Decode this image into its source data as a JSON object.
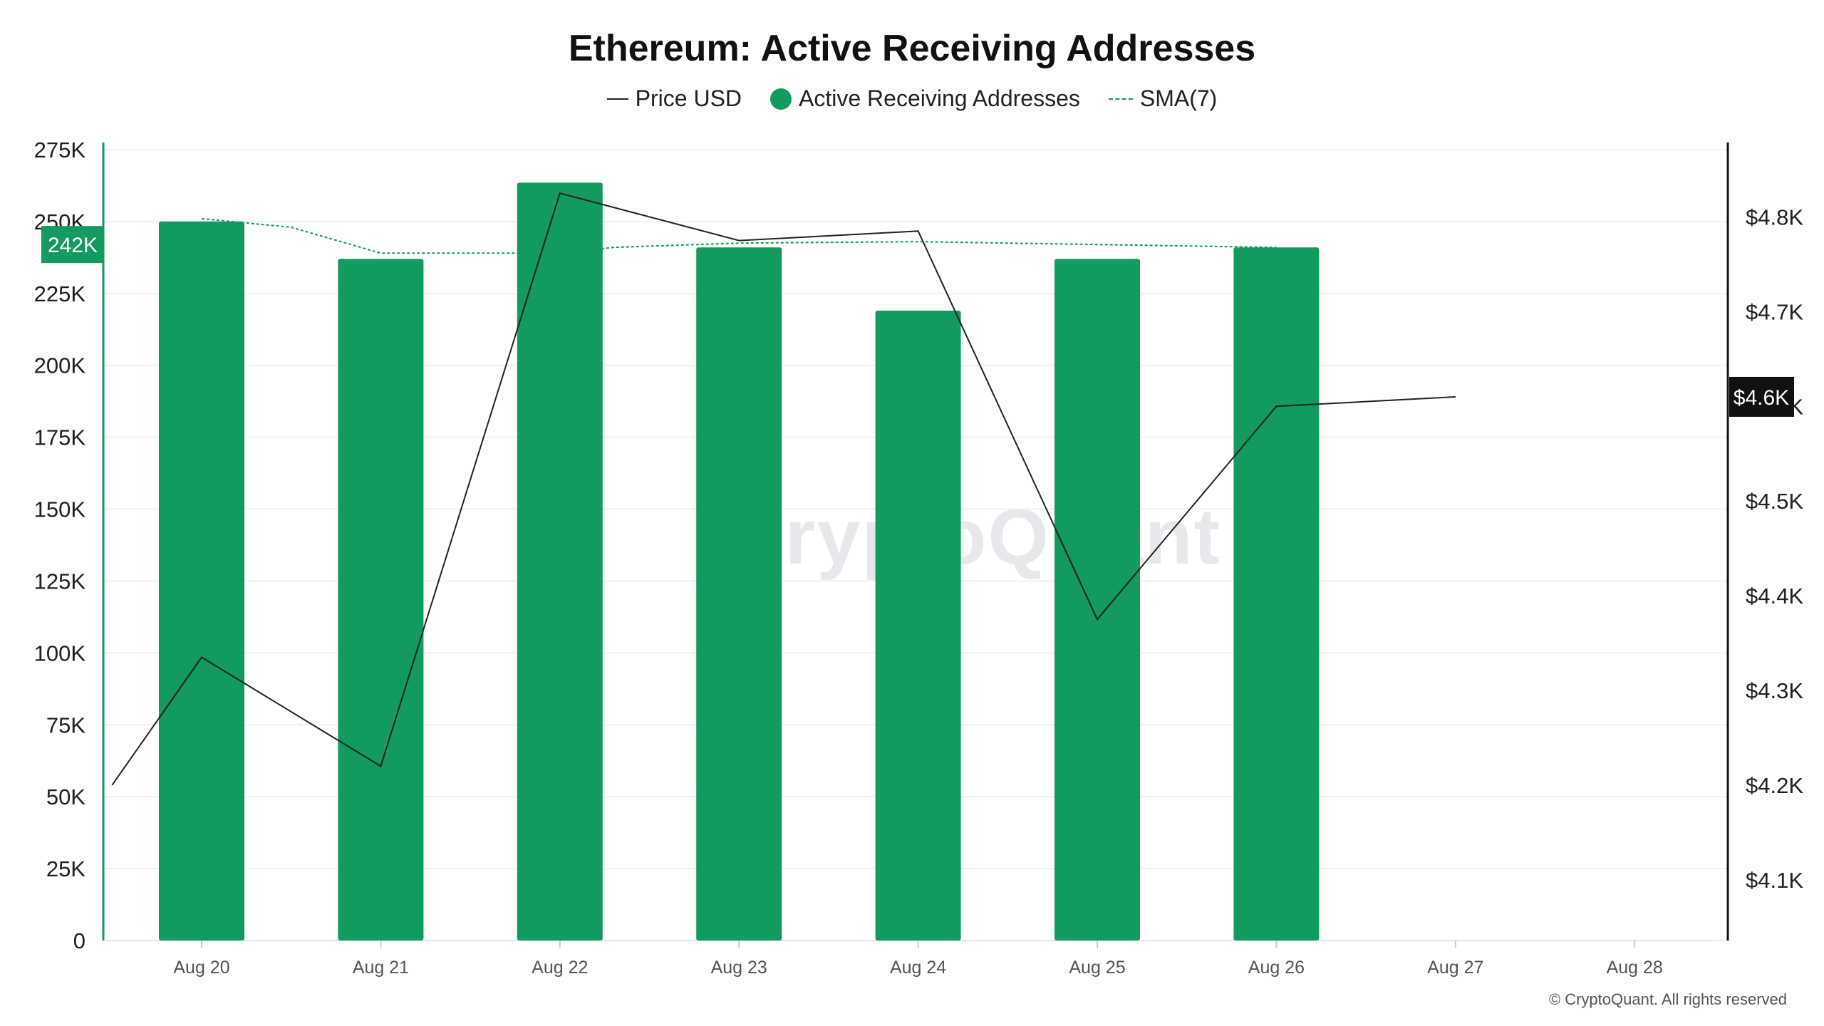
{
  "chart_data": {
    "type": "bar",
    "title": "Ethereum: Active Receiving Addresses",
    "categories": [
      "Aug 20",
      "Aug 21",
      "Aug 22",
      "Aug 23",
      "Aug 24",
      "Aug 25",
      "Aug 26",
      "Aug 27",
      "Aug 28"
    ],
    "legend": [
      "Price USD",
      "Active Receiving Addresses",
      "SMA(7)"
    ],
    "legend_position": "top-center",
    "series": [
      {
        "name": "Active Receiving Addresses",
        "type": "bar",
        "axis": "left",
        "color": "#139a5f",
        "values": [
          250000,
          237000,
          263500,
          241000,
          219000,
          237000,
          241000,
          null,
          null
        ]
      },
      {
        "name": "SMA(7)",
        "type": "line",
        "style": "dashed",
        "axis": "left",
        "color": "#139a5f",
        "points": [
          [
            0,
            251000
          ],
          [
            0.5,
            248000
          ],
          [
            1,
            239000
          ],
          [
            2,
            239000
          ],
          [
            2.3,
            241000
          ],
          [
            3,
            242500
          ],
          [
            4,
            243000
          ],
          [
            5,
            242000
          ],
          [
            6,
            241000
          ]
        ]
      },
      {
        "name": "Price USD",
        "type": "line",
        "axis": "right",
        "color": "#222222",
        "points": [
          [
            -0.5,
            4200
          ],
          [
            0,
            4335
          ],
          [
            1,
            4220
          ],
          [
            2,
            4825
          ],
          [
            3,
            4775
          ],
          [
            4,
            4785
          ],
          [
            5,
            4375
          ],
          [
            6,
            4600
          ],
          [
            7,
            4610
          ]
        ]
      }
    ],
    "y_left": {
      "ylim": [
        0,
        275000
      ],
      "ticks": [
        0,
        25000,
        50000,
        75000,
        100000,
        125000,
        150000,
        175000,
        200000,
        225000,
        250000,
        275000
      ],
      "tick_labels": [
        "0",
        "25K",
        "50K",
        "75K",
        "100K",
        "125K",
        "150K",
        "175K",
        "200K",
        "225K",
        "250K",
        "275K"
      ],
      "current_badge": "242K",
      "current_value": 242000
    },
    "y_right": {
      "ylim": [
        4036,
        4871
      ],
      "ticks": [
        4100,
        4200,
        4300,
        4400,
        4500,
        4600,
        4700,
        4800
      ],
      "tick_labels": [
        "$4.1K",
        "$4.2K",
        "$4.3K",
        "$4.4K",
        "$4.5K",
        "$4.6K",
        "$4.7K",
        "$4.8K"
      ],
      "current_badge": "$4.6K",
      "current_value": 4610
    },
    "grid": true
  },
  "watermark": "CryptoQuant",
  "copyright": "© CryptoQuant. All rights reserved"
}
